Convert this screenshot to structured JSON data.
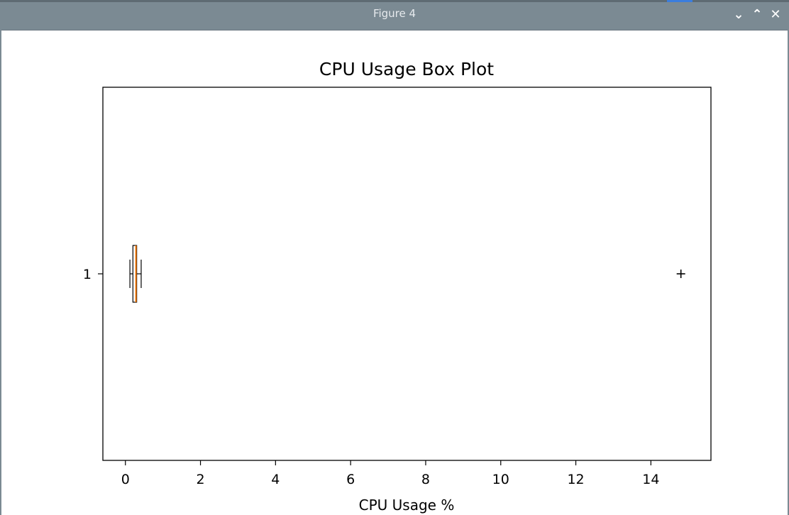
{
  "window": {
    "title": "Figure 4",
    "buttons": {
      "minimize": "⌄",
      "maximize": "⌃",
      "close": "✕"
    }
  },
  "chart_data": {
    "type": "boxplot",
    "orientation": "horizontal",
    "title": "CPU Usage Box Plot",
    "xlabel": "CPU Usage %",
    "ylabel": "",
    "xlim": [
      -0.6,
      15.6
    ],
    "xticks": [
      0,
      2,
      4,
      6,
      8,
      10,
      12,
      14
    ],
    "categories": [
      "1"
    ],
    "boxes": [
      {
        "category": "1",
        "whisker_low": 0.12,
        "q1": 0.2,
        "median": 0.28,
        "q3": 0.3,
        "whisker_high": 0.42,
        "outliers": [
          14.8
        ]
      }
    ],
    "colors": {
      "median": "#ff7f0e",
      "box": "#000000"
    },
    "grid": false
  }
}
